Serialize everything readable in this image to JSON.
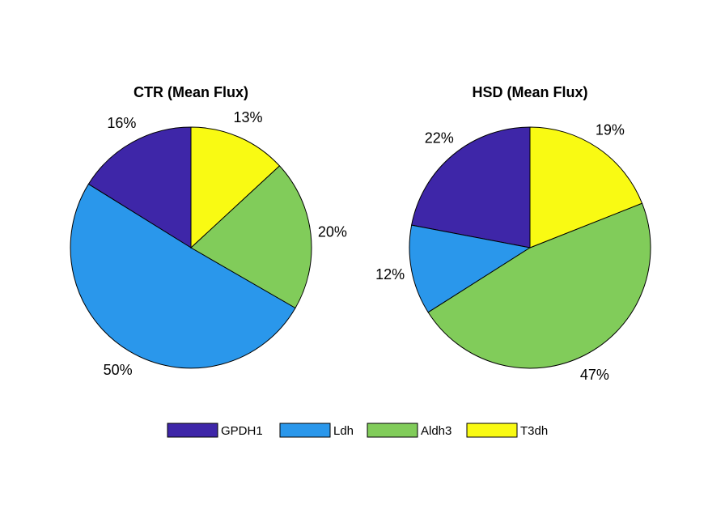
{
  "chart_data": [
    {
      "type": "pie",
      "title": "CTR (Mean Flux)",
      "slices": [
        {
          "name": "GPDH1",
          "value": 16,
          "label": "16%"
        },
        {
          "name": "Ldh",
          "value": 50,
          "label": "50%"
        },
        {
          "name": "Aldh3",
          "value": 20,
          "label": "20%"
        },
        {
          "name": "T3dh",
          "value": 13,
          "label": "13%"
        }
      ]
    },
    {
      "type": "pie",
      "title": "HSD (Mean Flux)",
      "slices": [
        {
          "name": "GPDH1",
          "value": 22,
          "label": "22%"
        },
        {
          "name": "Ldh",
          "value": 12,
          "label": "12%"
        },
        {
          "name": "Aldh3",
          "value": 47,
          "label": "47%"
        },
        {
          "name": "T3dh",
          "value": 19,
          "label": "19%"
        }
      ]
    }
  ],
  "legend": {
    "placement": "bottom",
    "entries": [
      {
        "name": "GPDH1",
        "color": "#3E26A8"
      },
      {
        "name": "Ldh",
        "color": "#2A97EB"
      },
      {
        "name": "Aldh3",
        "color": "#81CC5A"
      },
      {
        "name": "T3dh",
        "color": "#F9FA13"
      }
    ]
  }
}
